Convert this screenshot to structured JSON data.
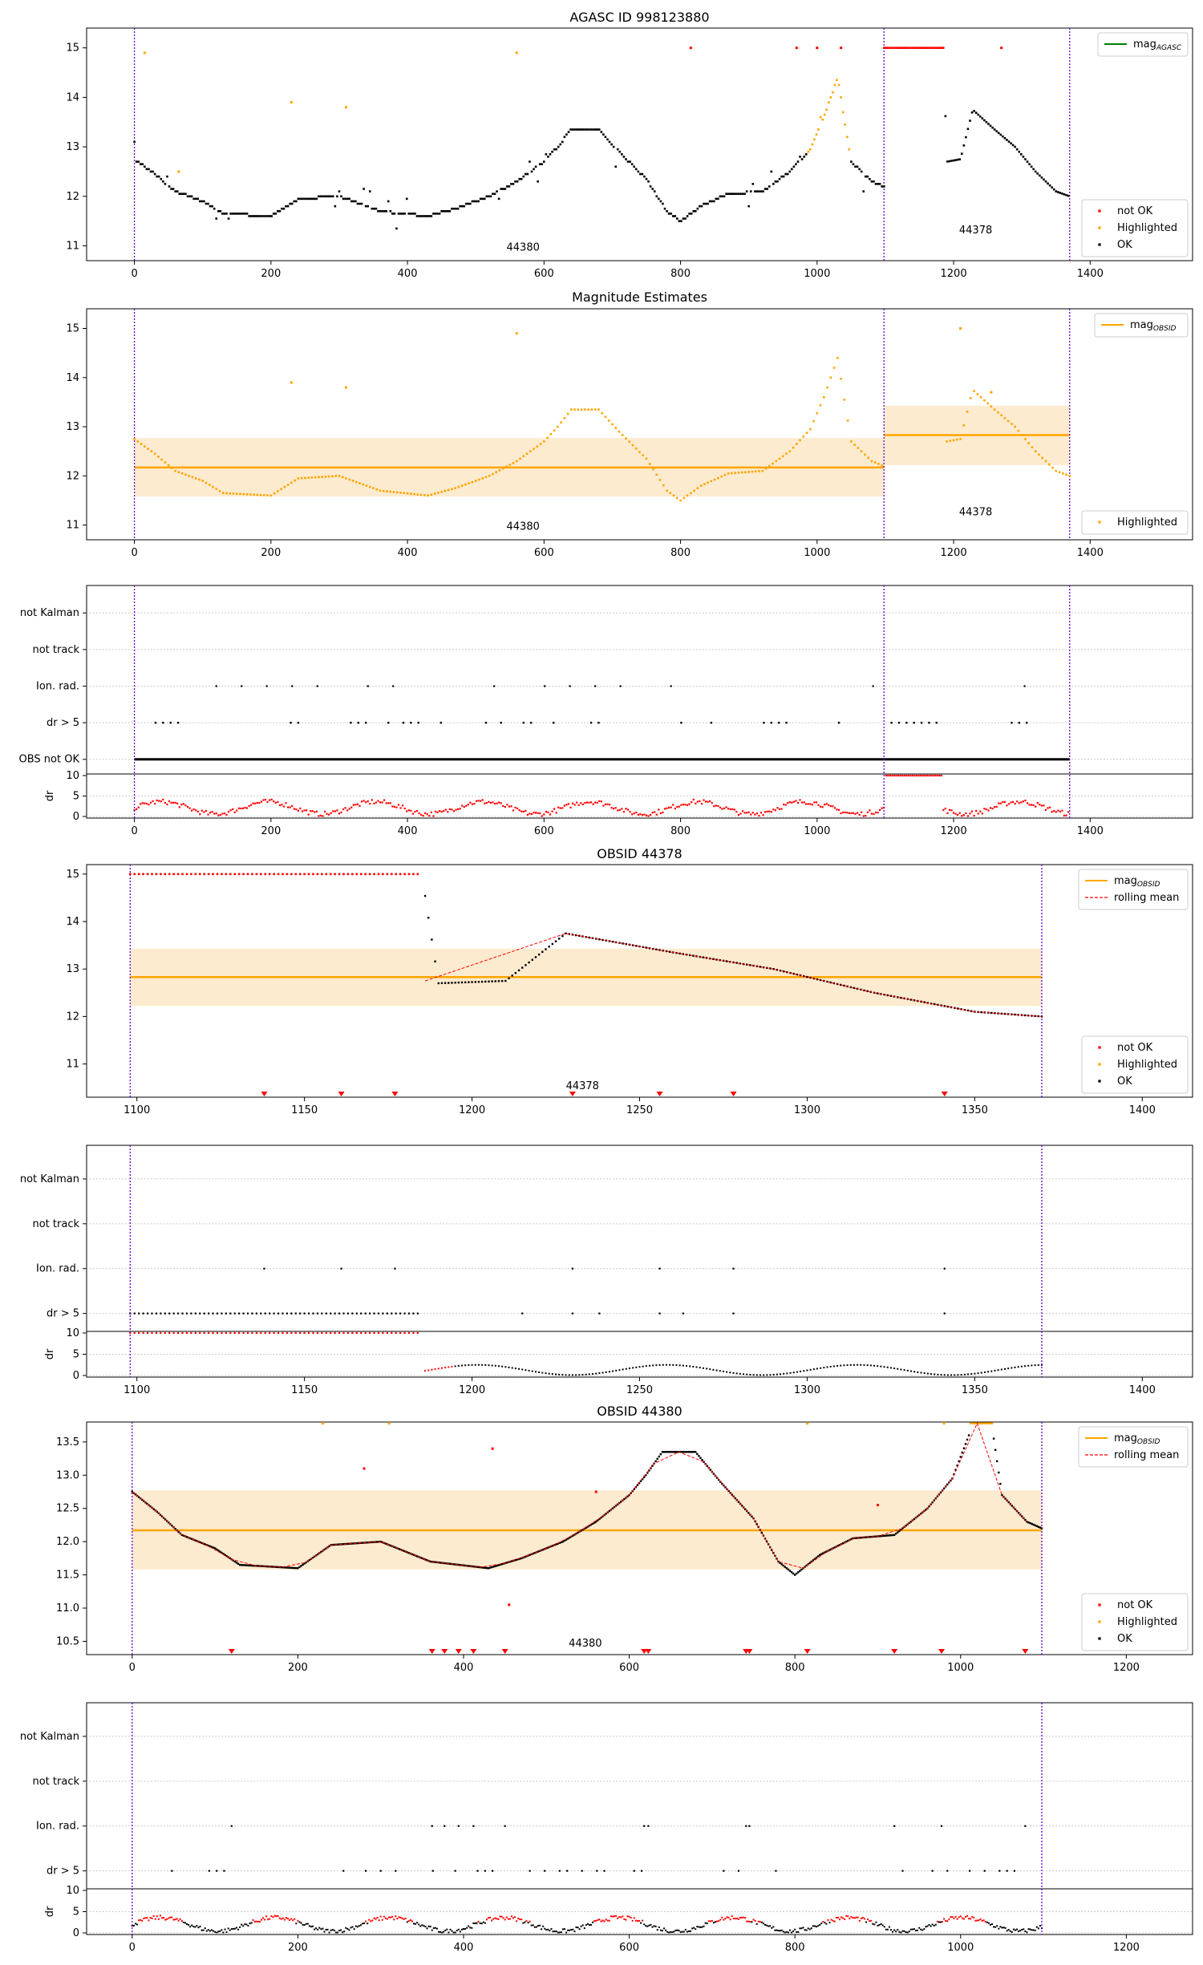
{
  "colors": {
    "ok": "#000000",
    "not_ok": "#ff0000",
    "highlighted": "#ffa500",
    "agasc_line": "#008000",
    "obsid_line": "#ffa500",
    "band": "#fdebd0",
    "obsid_marker": "#6600cc",
    "rolling": "#ff0000"
  },
  "panels": {
    "agasc": {
      "title": "AGASC ID 998123880",
      "legend_line": "mag",
      "legend_line_sub": "AGASC",
      "legend": [
        "not OK",
        "Highlighted",
        "OK"
      ],
      "ann1": "44380",
      "ann2": "44378"
    },
    "magest": {
      "title": "Magnitude Estimates",
      "legend_line": "mag",
      "legend_line_sub": "OBSID",
      "legend": [
        "Highlighted"
      ],
      "ann1": "44380",
      "ann2": "44378"
    },
    "flags_all": {
      "rows": [
        "not Kalman",
        "not track",
        "Ion. rad.",
        "dr > 5",
        "OBS not OK"
      ]
    },
    "obs44378": {
      "title": "OBSID 44378",
      "legend_line": "mag",
      "legend_line_sub": "OBSID",
      "legend_mean": "rolling mean",
      "legend": [
        "not OK",
        "Highlighted",
        "OK"
      ],
      "ann": "44378"
    },
    "flags_44378": {
      "rows": [
        "not Kalman",
        "not track",
        "Ion. rad.",
        "dr > 5"
      ]
    },
    "obs44380": {
      "title": "OBSID 44380",
      "legend_line": "mag",
      "legend_line_sub": "OBSID",
      "legend_mean": "rolling mean",
      "legend": [
        "not OK",
        "Highlighted",
        "OK"
      ],
      "ann": "44380"
    },
    "flags_44380": {
      "rows": [
        "not Kalman",
        "not track",
        "Ion. rad.",
        "dr > 5"
      ]
    },
    "dr_label": "dr"
  },
  "chart_data": [
    {
      "type": "scatter",
      "title": "AGASC ID 998123880",
      "xlim": [
        -70,
        1550
      ],
      "ylim": [
        10.7,
        15.4
      ],
      "xticks": [
        0,
        200,
        400,
        600,
        800,
        1000,
        1200,
        1400
      ],
      "yticks": [
        11,
        12,
        13,
        14,
        15
      ],
      "series_names": [
        "not OK",
        "Highlighted",
        "OK"
      ],
      "obsids": [
        "44380",
        "44378"
      ],
      "obsid_boundaries": [
        0,
        1098,
        1370
      ],
      "profile_44380": [
        [
          0,
          12.75
        ],
        [
          30,
          12.45
        ],
        [
          60,
          12.1
        ],
        [
          100,
          11.9
        ],
        [
          130,
          11.65
        ],
        [
          200,
          11.6
        ],
        [
          240,
          11.95
        ],
        [
          300,
          12.0
        ],
        [
          360,
          11.7
        ],
        [
          430,
          11.6
        ],
        [
          470,
          11.75
        ],
        [
          520,
          12.0
        ],
        [
          560,
          12.3
        ],
        [
          600,
          12.7
        ],
        [
          620,
          13.0
        ],
        [
          640,
          13.35
        ],
        [
          680,
          13.35
        ],
        [
          710,
          12.9
        ],
        [
          750,
          12.35
        ],
        [
          780,
          11.7
        ],
        [
          800,
          11.5
        ],
        [
          830,
          11.8
        ],
        [
          870,
          12.05
        ],
        [
          920,
          12.1
        ],
        [
          960,
          12.5
        ],
        [
          990,
          12.95
        ],
        [
          1010,
          13.6
        ],
        [
          1030,
          14.4
        ],
        [
          1050,
          12.7
        ],
        [
          1080,
          12.3
        ],
        [
          1098,
          12.2
        ]
      ],
      "profile_44378": [
        [
          1098,
          15.0
        ],
        [
          1185,
          15.0
        ],
        [
          1190,
          12.7
        ],
        [
          1210,
          12.75
        ],
        [
          1228,
          13.75
        ],
        [
          1260,
          13.35
        ],
        [
          1290,
          13.0
        ],
        [
          1320,
          12.5
        ],
        [
          1350,
          12.1
        ],
        [
          1370,
          12.0
        ]
      ]
    },
    {
      "type": "scatter",
      "title": "Magnitude Estimates",
      "xlim": [
        -70,
        1550
      ],
      "ylim": [
        10.7,
        15.4
      ],
      "xticks": [
        0,
        200,
        400,
        600,
        800,
        1000,
        1200,
        1400
      ],
      "yticks": [
        11,
        12,
        13,
        14,
        15
      ],
      "series_names": [
        "Highlighted"
      ],
      "mag_obsid": [
        {
          "obsid": "44380",
          "x": [
            0,
            1098
          ],
          "mean": 12.17,
          "band": [
            11.58,
            12.77
          ]
        },
        {
          "obsid": "44378",
          "x": [
            1098,
            1370
          ],
          "mean": 12.83,
          "band": [
            12.22,
            13.43
          ]
        }
      ]
    },
    {
      "type": "scatter",
      "title": "",
      "xlim": [
        -70,
        1550
      ],
      "categories": [
        "not Kalman",
        "not track",
        "Ion. rad.",
        "dr > 5",
        "OBS not OK"
      ],
      "dr_ylim": [
        0,
        10
      ],
      "dr_yticks": [
        0,
        5,
        10
      ]
    },
    {
      "type": "line",
      "title": "OBSID 44378",
      "xlim": [
        1085,
        1415
      ],
      "ylim": [
        10.3,
        15.2
      ],
      "xticks": [
        1100,
        1150,
        1200,
        1250,
        1300,
        1350,
        1400
      ],
      "yticks": [
        11,
        12,
        13,
        14,
        15
      ],
      "series_names": [
        "not OK",
        "Highlighted",
        "OK"
      ],
      "mag_obsid": 12.83,
      "band": [
        12.22,
        13.43
      ]
    },
    {
      "type": "scatter",
      "title": "",
      "xlim": [
        1085,
        1415
      ],
      "categories": [
        "not Kalman",
        "not track",
        "Ion. rad.",
        "dr > 5"
      ],
      "dr_yticks": [
        0,
        5,
        10
      ]
    },
    {
      "type": "line",
      "title": "OBSID 44380",
      "xlim": [
        -55,
        1280
      ],
      "ylim": [
        10.3,
        13.8
      ],
      "xticks": [
        0,
        200,
        400,
        600,
        800,
        1000,
        1200
      ],
      "yticks": [
        10.5,
        11.0,
        11.5,
        12.0,
        12.5,
        13.0,
        13.5
      ],
      "series_names": [
        "not OK",
        "Highlighted",
        "OK"
      ],
      "mag_obsid": 12.17,
      "band": [
        11.58,
        12.77
      ]
    },
    {
      "type": "scatter",
      "title": "",
      "xlim": [
        -55,
        1280
      ],
      "categories": [
        "not Kalman",
        "not track",
        "Ion. rad.",
        "dr > 5"
      ],
      "dr_yticks": [
        0,
        5,
        10
      ]
    }
  ]
}
